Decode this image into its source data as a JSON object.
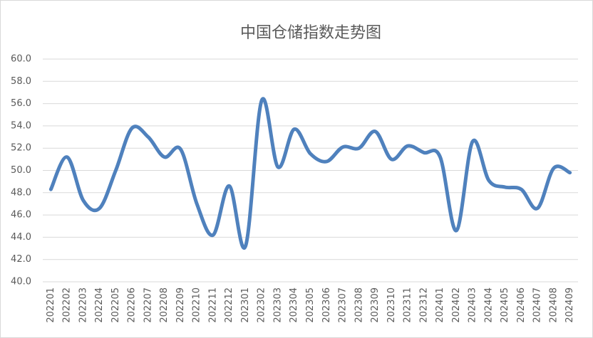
{
  "chart_data": {
    "type": "line",
    "title": "中国仓储指数走势图",
    "categories": [
      "202201",
      "202202",
      "202203",
      "202204",
      "202205",
      "202206",
      "202207",
      "202208",
      "202209",
      "202210",
      "202211",
      "202212",
      "202301",
      "202302",
      "202303",
      "202304",
      "202305",
      "202306",
      "202307",
      "202308",
      "202309",
      "202310",
      "202311",
      "202312",
      "202401",
      "202402",
      "202403",
      "202404",
      "202405",
      "202406",
      "202407",
      "202408",
      "202409"
    ],
    "values": [
      48.3,
      51.2,
      47.3,
      46.6,
      50.0,
      53.8,
      53.0,
      51.2,
      51.9,
      47.0,
      44.2,
      48.6,
      43.2,
      56.3,
      50.3,
      53.7,
      51.5,
      50.8,
      52.1,
      52.0,
      53.5,
      51.0,
      52.2,
      51.6,
      51.2,
      44.6,
      52.6,
      49.1,
      48.5,
      48.3,
      46.6,
      50.2,
      49.8
    ],
    "color": "#4f81bd",
    "ylim": [
      40,
      60
    ],
    "yticks": [
      {
        "value": 40,
        "label": "40.0"
      },
      {
        "value": 42,
        "label": "42.0"
      },
      {
        "value": 44,
        "label": "44.0"
      },
      {
        "value": 46,
        "label": "46.0"
      },
      {
        "value": 48,
        "label": "48.0"
      },
      {
        "value": 50,
        "label": "50.0"
      },
      {
        "value": 52,
        "label": "52.0"
      },
      {
        "value": 54,
        "label": "54.0"
      },
      {
        "value": 56,
        "label": "56.0"
      },
      {
        "value": 58,
        "label": "58.0"
      },
      {
        "value": 60,
        "label": "60.0"
      }
    ],
    "grid": true
  }
}
